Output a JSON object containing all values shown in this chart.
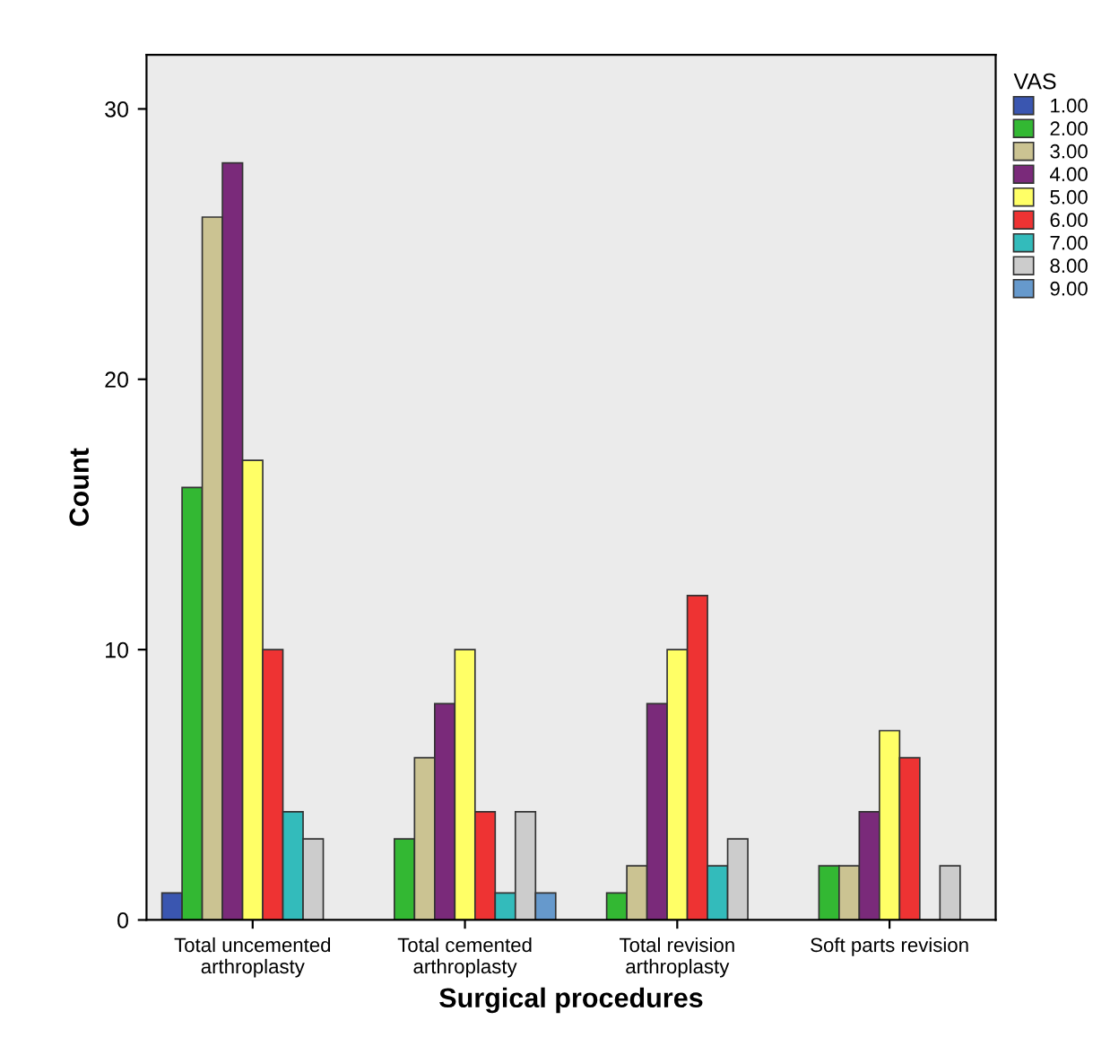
{
  "chart_data": {
    "type": "bar",
    "xlabel": "Surgical procedures",
    "ylabel": "Count",
    "legend_title": "VAS",
    "legend": "right",
    "categories": [
      "Total uncemented\narthroplasty",
      "Total cemented\narthroplasty",
      "Total revision\narthroplasty",
      "Soft parts revision"
    ],
    "ylim": [
      0,
      32
    ],
    "yticks": [
      0,
      10,
      20,
      30
    ],
    "grid": false,
    "series": [
      {
        "name": "1.00",
        "color": "#3a56b0",
        "values": [
          1,
          null,
          null,
          null
        ]
      },
      {
        "name": "2.00",
        "color": "#33b833",
        "values": [
          16,
          3,
          1,
          2
        ]
      },
      {
        "name": "3.00",
        "color": "#cbc392",
        "values": [
          26,
          6,
          2,
          2
        ]
      },
      {
        "name": "4.00",
        "color": "#7a2a7a",
        "values": [
          28,
          8,
          8,
          4
        ]
      },
      {
        "name": "5.00",
        "color": "#ffff66",
        "values": [
          17,
          10,
          10,
          7
        ]
      },
      {
        "name": "6.00",
        "color": "#ee3333",
        "values": [
          10,
          4,
          12,
          6
        ]
      },
      {
        "name": "7.00",
        "color": "#33bbbb",
        "values": [
          4,
          1,
          2,
          null
        ]
      },
      {
        "name": "8.00",
        "color": "#cccccc",
        "values": [
          3,
          4,
          3,
          2
        ]
      },
      {
        "name": "9.00",
        "color": "#6699cc",
        "values": [
          null,
          1,
          null,
          null
        ]
      }
    ]
  }
}
